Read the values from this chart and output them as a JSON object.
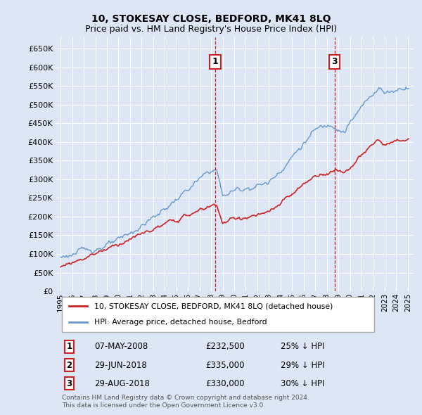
{
  "title": "10, STOKESAY CLOSE, BEDFORD, MK41 8LQ",
  "subtitle": "Price paid vs. HM Land Registry's House Price Index (HPI)",
  "background_color": "#dce6f5",
  "plot_bg_color": "#dce6f5",
  "bottom_bg_color": "#ffffff",
  "grid_color": "#ffffff",
  "ylim": [
    0,
    680000
  ],
  "yticks": [
    0,
    50000,
    100000,
    150000,
    200000,
    250000,
    300000,
    350000,
    400000,
    450000,
    500000,
    550000,
    600000,
    650000
  ],
  "ytick_labels": [
    "£0",
    "£50K",
    "£100K",
    "£150K",
    "£200K",
    "£250K",
    "£300K",
    "£350K",
    "£400K",
    "£450K",
    "£500K",
    "£550K",
    "£600K",
    "£650K"
  ],
  "hpi_color": "#6699cc",
  "price_color": "#cc2222",
  "annotation_box_color": "#cc2222",
  "annotation_line_color": "#cc2222",
  "legend_entries": [
    "10, STOKESAY CLOSE, BEDFORD, MK41 8LQ (detached house)",
    "HPI: Average price, detached house, Bedford"
  ],
  "transactions": [
    {
      "num": 1,
      "date": "07-MAY-2008",
      "price": 232500,
      "pct": "25%",
      "direction": "↓",
      "x_year": 2008.35,
      "show_vline": true
    },
    {
      "num": 2,
      "date": "29-JUN-2018",
      "price": 335000,
      "pct": "29%",
      "direction": "↓",
      "x_year": 2018.5,
      "show_vline": false
    },
    {
      "num": 3,
      "date": "29-AUG-2018",
      "price": 330000,
      "pct": "30%",
      "direction": "↓",
      "x_year": 2018.67,
      "show_vline": true
    }
  ],
  "footer_lines": [
    "Contains HM Land Registry data © Crown copyright and database right 2024.",
    "This data is licensed under the Open Government Licence v3.0."
  ],
  "xlim": [
    1994.5,
    2025.5
  ],
  "hpi_data": {
    "comment": "Bedford detached house HPI - monthly from 1995 to 2025",
    "start_year": 1995,
    "end_year": 2025,
    "step": 0.0833
  }
}
